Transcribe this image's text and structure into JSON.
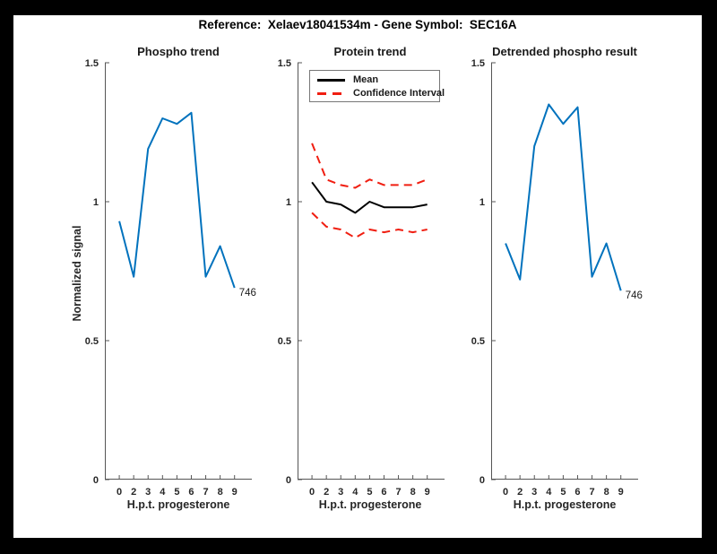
{
  "figure_title": "Reference:  Xelaev18041534m - Gene Symbol:  SEC16A",
  "colors": {
    "line_blue": "#0072BD",
    "line_black": "#000000",
    "line_red": "#F01E11",
    "axis": "#555555",
    "text": "#262626",
    "frame_background": "#000000",
    "figure_background": "#FFFFFF"
  },
  "chart_data": [
    {
      "type": "line",
      "title": "Phospho trend",
      "xlabel": "H.p.t. progesterone",
      "ylabel": "Normalized signal",
      "categories": [
        "0",
        "2",
        "3",
        "4",
        "5",
        "6",
        "7",
        "8",
        "9"
      ],
      "yticks": [
        0,
        0.5,
        1,
        1.5
      ],
      "ylim": [
        0,
        1.5
      ],
      "grid": false,
      "legend_position": "none",
      "series": [
        {
          "name": "phospho",
          "color": "#0072BD",
          "style": "solid",
          "values": [
            0.93,
            0.73,
            1.19,
            1.3,
            1.28,
            1.32,
            0.73,
            0.84,
            0.69
          ]
        }
      ],
      "endpoint_label": "746"
    },
    {
      "type": "line",
      "title": "Protein trend",
      "xlabel": "H.p.t. progesterone",
      "ylabel": "",
      "categories": [
        "0",
        "2",
        "3",
        "4",
        "5",
        "6",
        "7",
        "8",
        "9"
      ],
      "yticks": [
        0,
        0.5,
        1,
        1.5
      ],
      "ylim": [
        0,
        1.5
      ],
      "grid": false,
      "legend_position": "northeast-inside",
      "legend": [
        {
          "label": "Mean",
          "color": "#000000",
          "style": "solid"
        },
        {
          "label": "Confidence Interval",
          "color": "#F01E11",
          "style": "dashed"
        }
      ],
      "series": [
        {
          "name": "mean",
          "color": "#000000",
          "style": "solid",
          "values": [
            1.07,
            1.0,
            0.99,
            0.96,
            1.0,
            0.98,
            0.98,
            0.98,
            0.99
          ]
        },
        {
          "name": "ci-upper",
          "color": "#F01E11",
          "style": "dashed",
          "values": [
            1.21,
            1.08,
            1.06,
            1.05,
            1.08,
            1.06,
            1.06,
            1.06,
            1.08
          ]
        },
        {
          "name": "ci-lower",
          "color": "#F01E11",
          "style": "dashed",
          "values": [
            0.96,
            0.91,
            0.9,
            0.87,
            0.9,
            0.89,
            0.9,
            0.89,
            0.9
          ]
        }
      ],
      "endpoint_label": ""
    },
    {
      "type": "line",
      "title": "Detrended phospho result",
      "xlabel": "H.p.t. progesterone",
      "ylabel": "",
      "categories": [
        "0",
        "2",
        "3",
        "4",
        "5",
        "6",
        "7",
        "8",
        "9"
      ],
      "yticks": [
        0,
        0.5,
        1,
        1.5
      ],
      "ylim": [
        0,
        1.5
      ],
      "grid": false,
      "legend_position": "none",
      "series": [
        {
          "name": "detrended-phospho",
          "color": "#0072BD",
          "style": "solid",
          "values": [
            0.85,
            0.72,
            1.2,
            1.35,
            1.28,
            1.34,
            0.73,
            0.85,
            0.68
          ]
        }
      ],
      "endpoint_label": "746"
    }
  ]
}
